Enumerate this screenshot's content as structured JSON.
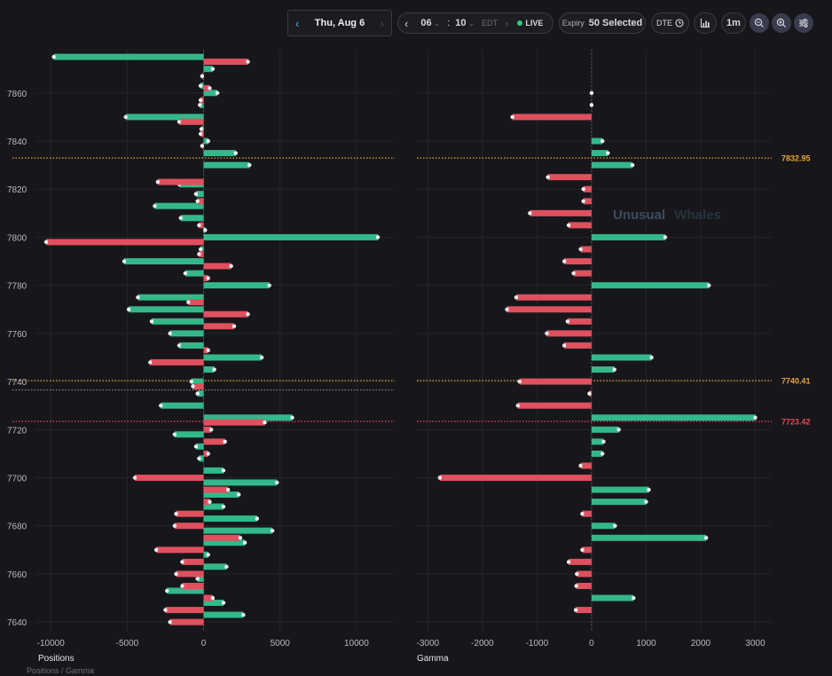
{
  "toolbar": {
    "date": "Thu, Aug 6",
    "hour": "06",
    "minute": "10",
    "timezone": "EDT",
    "live": "LIVE",
    "expiry_label": "Expiry",
    "expiry_value": "50 Selected",
    "dte": "DTE",
    "interval": "1m"
  },
  "footer": {
    "caption": "Positions / Gamma"
  },
  "watermark": {
    "word1": "Unusual",
    "word2": "Whales"
  },
  "colors": {
    "positive": "#33b88a",
    "negative": "#e0505e",
    "reference_orange": "#e8a33a",
    "reference_red": "#e84a5a",
    "spot_dotted": "#8a8a9a",
    "background": "#17171b"
  },
  "chart_data": [
    {
      "type": "bar",
      "orientation": "horizontal",
      "xlabel": "Positions",
      "ylabel": "",
      "xlim": [
        -11000,
        12500
      ],
      "ylim": [
        7636,
        7878
      ],
      "xticks": [
        -10000,
        -5000,
        0,
        5000,
        10000
      ],
      "yticks": [
        7640,
        7660,
        7680,
        7700,
        7720,
        7740,
        7760,
        7780,
        7800,
        7820,
        7840,
        7860
      ],
      "series": [
        {
          "name": "",
          "color": "positive",
          "points": [
            {
              "y": 7875,
              "v": -9800
            },
            {
              "y": 7870,
              "v": 600
            },
            {
              "y": 7863,
              "v": -200
            },
            {
              "y": 7860,
              "v": 900
            },
            {
              "y": 7855,
              "v": -250
            },
            {
              "y": 7850,
              "v": -5100
            },
            {
              "y": 7845,
              "v": -150
            },
            {
              "y": 7840,
              "v": 300
            },
            {
              "y": 7835,
              "v": 2100
            },
            {
              "y": 7830,
              "v": 3000
            },
            {
              "y": 7822,
              "v": -1600
            },
            {
              "y": 7818,
              "v": -500
            },
            {
              "y": 7813,
              "v": -3200
            },
            {
              "y": 7808,
              "v": -1500
            },
            {
              "y": 7803,
              "v": 100
            },
            {
              "y": 7800,
              "v": 11400
            },
            {
              "y": 7795,
              "v": -200
            },
            {
              "y": 7790,
              "v": -5200
            },
            {
              "y": 7785,
              "v": -1200
            },
            {
              "y": 7780,
              "v": 4300
            },
            {
              "y": 7775,
              "v": -4300
            },
            {
              "y": 7770,
              "v": -4900
            },
            {
              "y": 7765,
              "v": -3400
            },
            {
              "y": 7760,
              "v": -2200
            },
            {
              "y": 7755,
              "v": -1600
            },
            {
              "y": 7750,
              "v": 3800
            },
            {
              "y": 7745,
              "v": 700
            },
            {
              "y": 7740,
              "v": -800
            },
            {
              "y": 7735,
              "v": -400
            },
            {
              "y": 7730,
              "v": -2800
            },
            {
              "y": 7725,
              "v": 5800
            },
            {
              "y": 7718,
              "v": -1900
            },
            {
              "y": 7713,
              "v": -500
            },
            {
              "y": 7708,
              "v": -300
            },
            {
              "y": 7703,
              "v": 1300
            },
            {
              "y": 7698,
              "v": 4800
            },
            {
              "y": 7693,
              "v": 2300
            },
            {
              "y": 7688,
              "v": 1300
            },
            {
              "y": 7683,
              "v": 3500
            },
            {
              "y": 7678,
              "v": 4500
            },
            {
              "y": 7673,
              "v": 2700
            },
            {
              "y": 7668,
              "v": 300
            },
            {
              "y": 7663,
              "v": 1500
            },
            {
              "y": 7658,
              "v": -400
            },
            {
              "y": 7653,
              "v": -2400
            },
            {
              "y": 7648,
              "v": 1300
            },
            {
              "y": 7643,
              "v": 2600
            }
          ]
        },
        {
          "name": "",
          "color": "negative",
          "points": [
            {
              "y": 7873,
              "v": 2900
            },
            {
              "y": 7867,
              "v": -100
            },
            {
              "y": 7862,
              "v": 400
            },
            {
              "y": 7857,
              "v": -200
            },
            {
              "y": 7848,
              "v": -1600
            },
            {
              "y": 7843,
              "v": -200
            },
            {
              "y": 7838,
              "v": -100
            },
            {
              "y": 7823,
              "v": -3000
            },
            {
              "y": 7815,
              "v": -400
            },
            {
              "y": 7805,
              "v": -300
            },
            {
              "y": 7798,
              "v": -10300
            },
            {
              "y": 7793,
              "v": -300
            },
            {
              "y": 7788,
              "v": 1800
            },
            {
              "y": 7783,
              "v": 300
            },
            {
              "y": 7773,
              "v": -1000
            },
            {
              "y": 7768,
              "v": 2900
            },
            {
              "y": 7763,
              "v": 2000
            },
            {
              "y": 7753,
              "v": 300
            },
            {
              "y": 7748,
              "v": -3500
            },
            {
              "y": 7738,
              "v": -700
            },
            {
              "y": 7723,
              "v": 4000
            },
            {
              "y": 7720,
              "v": 500
            },
            {
              "y": 7715,
              "v": 1400
            },
            {
              "y": 7710,
              "v": 300
            },
            {
              "y": 7700,
              "v": -4500
            },
            {
              "y": 7695,
              "v": 1600
            },
            {
              "y": 7690,
              "v": 400
            },
            {
              "y": 7685,
              "v": -1800
            },
            {
              "y": 7680,
              "v": -1900
            },
            {
              "y": 7675,
              "v": 2400
            },
            {
              "y": 7670,
              "v": -3100
            },
            {
              "y": 7665,
              "v": -1400
            },
            {
              "y": 7660,
              "v": -1800
            },
            {
              "y": 7655,
              "v": -1400
            },
            {
              "y": 7650,
              "v": 600
            },
            {
              "y": 7645,
              "v": -2500
            },
            {
              "y": 7640,
              "v": -2200
            }
          ]
        }
      ],
      "reference_lines": [
        {
          "y": 7832.95,
          "color": "reference_orange",
          "style": "dotted"
        },
        {
          "y": 7740.41,
          "color": "reference_orange",
          "style": "dotted"
        },
        {
          "y": 7736.5,
          "color": "spot_dotted",
          "style": "dotted"
        },
        {
          "y": 7723.42,
          "color": "reference_red",
          "style": "dotted"
        }
      ]
    },
    {
      "type": "bar",
      "orientation": "horizontal",
      "xlabel": "Gamma",
      "ylabel": "",
      "xlim": [
        -3200,
        3300
      ],
      "ylim": [
        7636,
        7878
      ],
      "xticks": [
        -3000,
        -2000,
        -1000,
        0,
        1000,
        2000,
        3000
      ],
      "bars": [
        {
          "y": 7860,
          "v": 0
        },
        {
          "y": 7855,
          "v": 0
        },
        {
          "y": 7850,
          "v": -1450
        },
        {
          "y": 7840,
          "v": 200
        },
        {
          "y": 7835,
          "v": 300
        },
        {
          "y": 7830,
          "v": 750
        },
        {
          "y": 7825,
          "v": -800
        },
        {
          "y": 7820,
          "v": -150
        },
        {
          "y": 7815,
          "v": -150
        },
        {
          "y": 7810,
          "v": -1130
        },
        {
          "y": 7805,
          "v": -420
        },
        {
          "y": 7800,
          "v": 1350
        },
        {
          "y": 7795,
          "v": -200
        },
        {
          "y": 7790,
          "v": -500
        },
        {
          "y": 7785,
          "v": -330
        },
        {
          "y": 7780,
          "v": 2150
        },
        {
          "y": 7775,
          "v": -1380
        },
        {
          "y": 7770,
          "v": -1550
        },
        {
          "y": 7765,
          "v": -440
        },
        {
          "y": 7760,
          "v": -820
        },
        {
          "y": 7755,
          "v": -500
        },
        {
          "y": 7750,
          "v": 1100
        },
        {
          "y": 7745,
          "v": 420
        },
        {
          "y": 7740,
          "v": -1320
        },
        {
          "y": 7735,
          "v": -40
        },
        {
          "y": 7730,
          "v": -1350
        },
        {
          "y": 7725,
          "v": 3000
        },
        {
          "y": 7720,
          "v": 500
        },
        {
          "y": 7715,
          "v": 220
        },
        {
          "y": 7710,
          "v": 200
        },
        {
          "y": 7705,
          "v": -200
        },
        {
          "y": 7700,
          "v": -2780
        },
        {
          "y": 7695,
          "v": 1050
        },
        {
          "y": 7690,
          "v": 1000
        },
        {
          "y": 7685,
          "v": -170
        },
        {
          "y": 7680,
          "v": 430
        },
        {
          "y": 7675,
          "v": 2100
        },
        {
          "y": 7670,
          "v": -170
        },
        {
          "y": 7665,
          "v": -420
        },
        {
          "y": 7660,
          "v": -270
        },
        {
          "y": 7655,
          "v": -280
        },
        {
          "y": 7650,
          "v": 770
        },
        {
          "y": 7645,
          "v": -290
        }
      ],
      "reference_lines": [
        {
          "y": 7832.95,
          "label": "7832.95",
          "color": "reference_orange",
          "style": "dotted"
        },
        {
          "y": 7740.41,
          "label": "7740.41",
          "color": "reference_orange",
          "style": "dotted"
        },
        {
          "y": 7723.42,
          "label": "7723.42",
          "color": "reference_red",
          "style": "dotted"
        }
      ]
    }
  ]
}
